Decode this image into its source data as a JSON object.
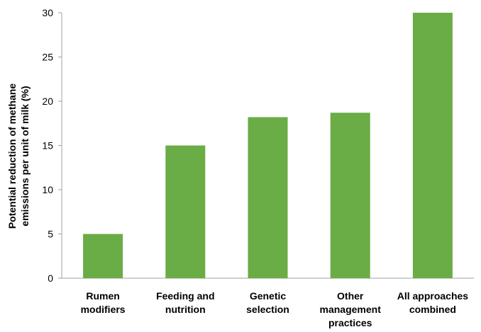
{
  "chart_data": {
    "type": "bar",
    "categories": [
      [
        "Rumen",
        "modifiers"
      ],
      [
        "Feeding and",
        "nutrition"
      ],
      [
        "Genetic",
        "selection"
      ],
      [
        "Other",
        "management",
        "practices"
      ],
      [
        "All approaches",
        "combined"
      ]
    ],
    "values": [
      5,
      15,
      18.2,
      18.7,
      30
    ],
    "ylabel": [
      "Potential reduction of methane",
      "emissions per unit of milk (%)"
    ],
    "xlabel": "",
    "ylim": [
      0,
      30
    ],
    "yticks": [
      "0",
      "5",
      "10",
      "15",
      "20",
      "25",
      "30"
    ],
    "grid": false,
    "legend": "none",
    "colors": {
      "bar": "#6aac45",
      "axis": "#a0a0a0",
      "text": "#000000"
    }
  }
}
